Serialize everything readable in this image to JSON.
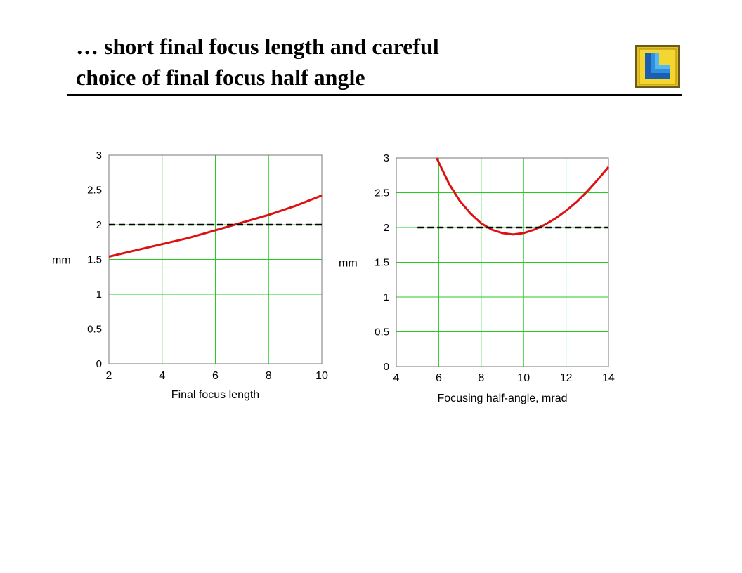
{
  "slide": {
    "title_line1": "… short final focus length and careful",
    "title_line2": "choice of final focus half angle"
  },
  "logo": {
    "icon": "llnl-logo-icon"
  },
  "colors": {
    "curve": "#dd1111",
    "grid": "#22cc22",
    "threshold": "#000000",
    "frame": "#777777"
  },
  "chart_data": [
    {
      "type": "line",
      "xlabel": "Final focus length",
      "ylabel": "mm",
      "xlim": [
        2,
        10
      ],
      "ylim": [
        0,
        3
      ],
      "xticks": [
        "2",
        "4",
        "6",
        "8",
        "10"
      ],
      "yticks": [
        "0",
        "0.5",
        "1",
        "1.5",
        "2",
        "2.5",
        "3"
      ],
      "grid": true,
      "series": [
        {
          "style": "solid",
          "color": "#dd1111",
          "x": [
            2,
            3,
            4,
            5,
            6,
            7,
            8,
            9,
            10
          ],
          "y": [
            1.54,
            1.63,
            1.72,
            1.81,
            1.92,
            2.03,
            2.14,
            2.27,
            2.42
          ]
        },
        {
          "style": "dashed",
          "color": "#000000",
          "x": [
            2,
            10
          ],
          "y": [
            2.0,
            2.0
          ]
        }
      ]
    },
    {
      "type": "line",
      "xlabel": "Focusing half-angle, mrad",
      "ylabel": "mm",
      "xlim": [
        4,
        14
      ],
      "ylim": [
        0,
        3
      ],
      "xticks": [
        "4",
        "6",
        "8",
        "10",
        "12",
        "14"
      ],
      "yticks": [
        "0",
        "0.5",
        "1",
        "1.5",
        "2",
        "2.5",
        "3"
      ],
      "grid": true,
      "series": [
        {
          "style": "solid",
          "color": "#dd1111",
          "x": [
            5.9,
            6.5,
            7,
            7.5,
            8,
            8.5,
            9,
            9.5,
            10,
            10.5,
            11,
            11.5,
            12,
            12.5,
            13,
            13.5,
            14
          ],
          "y": [
            3.0,
            2.62,
            2.38,
            2.2,
            2.06,
            1.97,
            1.92,
            1.9,
            1.92,
            1.97,
            2.04,
            2.13,
            2.24,
            2.37,
            2.52,
            2.69,
            2.87
          ]
        },
        {
          "style": "dashed",
          "color": "#000000",
          "x": [
            5,
            14
          ],
          "y": [
            2.0,
            2.0
          ]
        }
      ]
    }
  ]
}
